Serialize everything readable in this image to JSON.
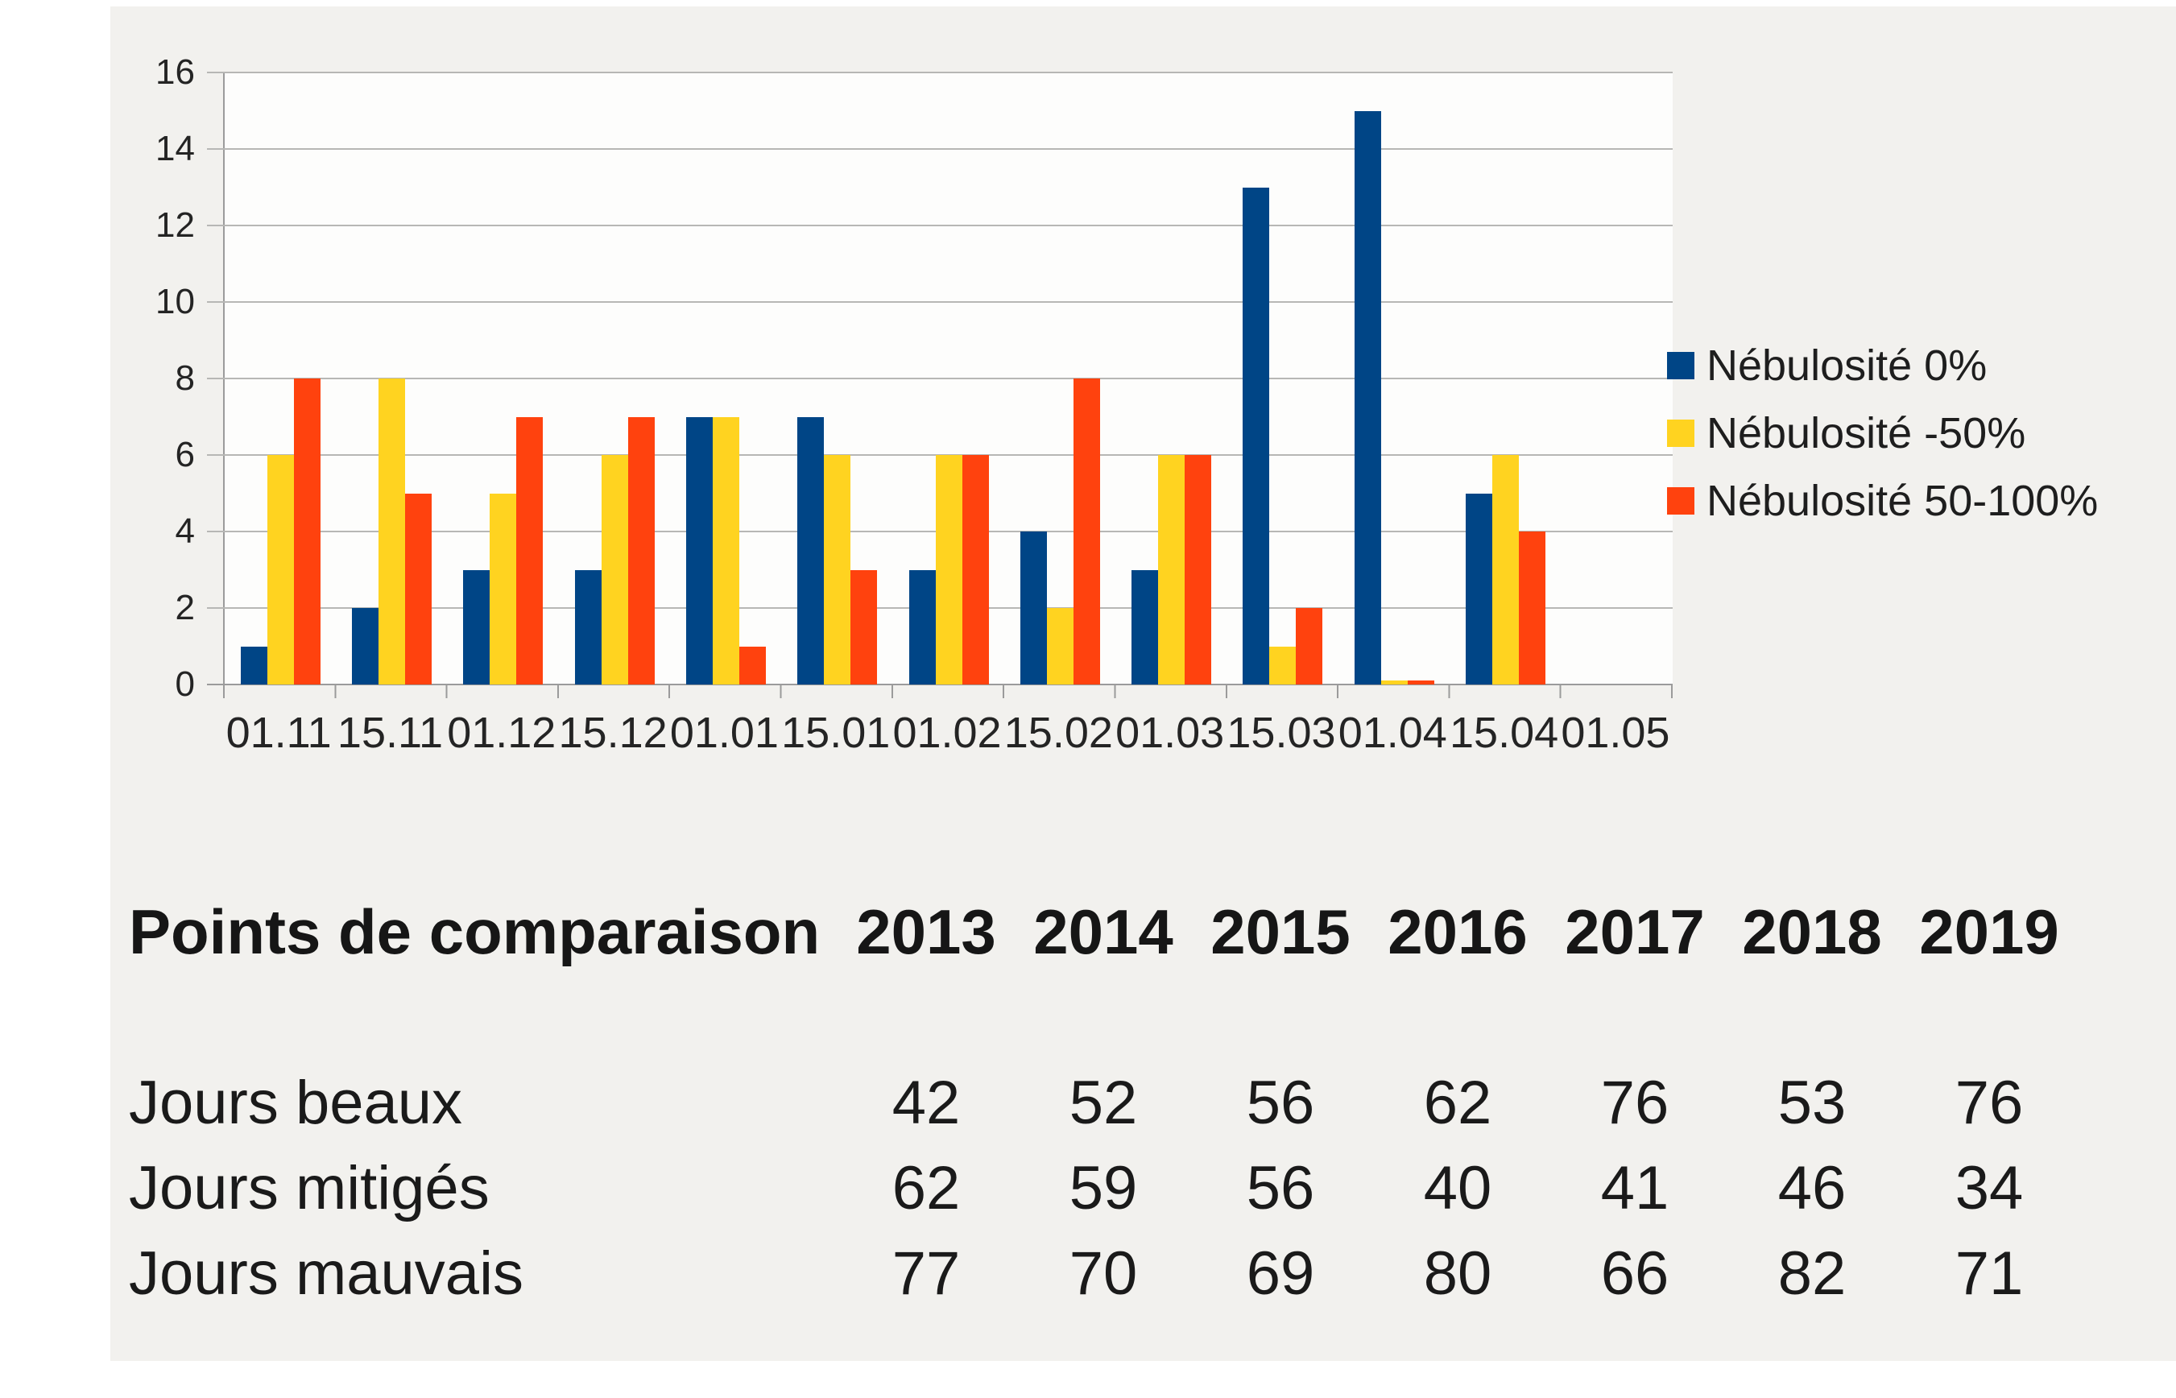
{
  "chart_data": {
    "type": "bar",
    "title": "",
    "categories": [
      "01.11",
      "15.11",
      "01.12",
      "15.12",
      "01.01",
      "15.01",
      "01.02",
      "15.02",
      "01.03",
      "15.03",
      "01.04",
      "15.04",
      "01.05"
    ],
    "series": [
      {
        "name": "Nébulosité 0%",
        "color": "#004586",
        "values": [
          1,
          2,
          3,
          3,
          7,
          7,
          3,
          4,
          3,
          13,
          15,
          5,
          0
        ]
      },
      {
        "name": "Nébulosité -50%",
        "color": "#ffd320",
        "values": [
          6,
          8,
          5,
          6,
          7,
          6,
          6,
          2,
          6,
          1,
          0.1,
          6,
          0
        ]
      },
      {
        "name": "Nébulosité 50-100%",
        "color": "#ff420e",
        "values": [
          8,
          5,
          7,
          7,
          1,
          3,
          6,
          8,
          6,
          2,
          0.1,
          4,
          0
        ]
      }
    ],
    "xlabel": "",
    "ylabel": "",
    "ylim": [
      0,
      16
    ],
    "yticks": [
      0,
      2,
      4,
      6,
      8,
      10,
      12,
      14,
      16
    ],
    "grid": true,
    "legend_position": "right"
  },
  "table": {
    "title": "Points de comparaison",
    "years": [
      "2013",
      "2014",
      "2015",
      "2016",
      "2017",
      "2018",
      "2019"
    ],
    "rows": [
      {
        "label": "Jours beaux",
        "values": [
          "42",
          "52",
          "56",
          "62",
          "76",
          "53",
          "76"
        ]
      },
      {
        "label": "Jours mitigés",
        "values": [
          "62",
          "59",
          "56",
          "40",
          "41",
          "46",
          "34"
        ]
      },
      {
        "label": "Jours mauvais",
        "values": [
          "77",
          "70",
          "69",
          "80",
          "66",
          "82",
          "71"
        ]
      }
    ]
  },
  "colors": {
    "grid": "#b7b7b5",
    "axis": "#9b9b9b",
    "panel": "#f2f1ee",
    "series_blue": "#004586",
    "series_yellow": "#ffd320",
    "series_red": "#ff420e"
  }
}
